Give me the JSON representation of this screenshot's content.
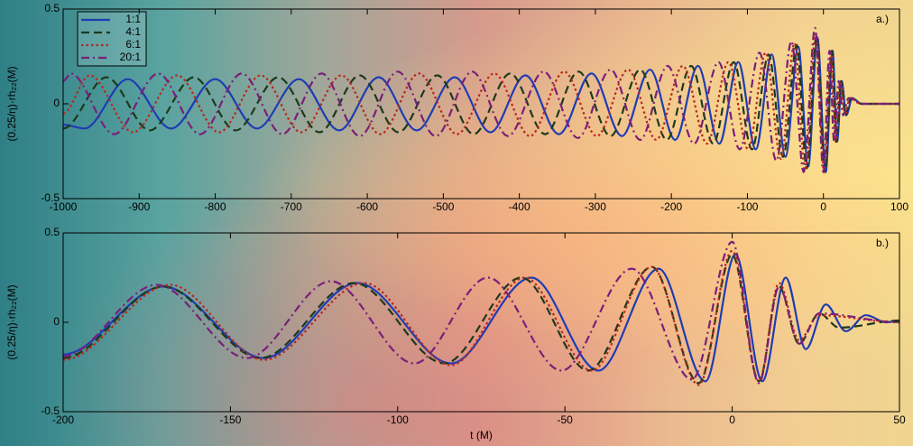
{
  "chart_data": [
    {
      "type": "line",
      "annotation": "a.)",
      "ylabel": "(0.25/η)·rh₂₂(M)",
      "xlim": [
        -1000,
        100
      ],
      "xticks": [
        -1000,
        -900,
        -800,
        -700,
        -600,
        -500,
        -400,
        -300,
        -200,
        -100,
        0,
        100
      ],
      "ylim": [
        -0.5,
        0.5
      ],
      "yticks": [
        -0.5,
        0,
        0.5
      ],
      "legend": "upper left",
      "grid": false,
      "series": [
        {
          "name": "1:1",
          "color": "#1e3cb4",
          "dash": "solid",
          "x": [
            -1000,
            -972,
            -915,
            -858,
            -800,
            -745,
            -690,
            -637,
            -585,
            -535,
            -485,
            -438,
            -392,
            -348,
            -305,
            -265,
            -228,
            -195,
            -165,
            -137,
            -112,
            -89,
            -68,
            -50,
            -33,
            -20,
            -8,
            3,
            12,
            18,
            24,
            30,
            38,
            50,
            100
          ],
          "values": [
            -0.11,
            -0.13,
            0.13,
            -0.13,
            0.13,
            -0.13,
            0.13,
            -0.14,
            0.14,
            -0.14,
            0.14,
            -0.15,
            0.15,
            -0.16,
            0.16,
            -0.17,
            0.18,
            -0.19,
            0.2,
            -0.21,
            0.22,
            -0.24,
            0.26,
            -0.28,
            0.3,
            -0.33,
            0.35,
            -0.36,
            0.28,
            -0.2,
            0.12,
            -0.06,
            0.03,
            0,
            0
          ]
        },
        {
          "name": "4:1",
          "color": "#1c3a1c",
          "dash": "dashed",
          "x": [
            -1000,
            -943,
            -886,
            -828,
            -773,
            -717,
            -663,
            -610,
            -559,
            -508,
            -460,
            -412,
            -366,
            -322,
            -280,
            -241,
            -206,
            -174,
            -145,
            -118,
            -94,
            -72,
            -53,
            -35,
            -22,
            -9,
            2,
            11,
            17,
            23,
            29,
            36,
            50,
            100
          ],
          "values": [
            -0.13,
            0.14,
            -0.14,
            0.14,
            -0.14,
            0.14,
            -0.15,
            0.15,
            -0.15,
            0.15,
            -0.16,
            0.16,
            -0.16,
            0.17,
            -0.17,
            0.18,
            -0.19,
            0.2,
            -0.21,
            0.22,
            -0.24,
            0.26,
            -0.28,
            0.31,
            -0.34,
            0.36,
            -0.36,
            0.28,
            -0.2,
            0.12,
            -0.06,
            0.03,
            0,
            0
          ]
        },
        {
          "name": "6:1",
          "color": "#b8281c",
          "dash": "dotted",
          "x": [
            -1000,
            -965,
            -908,
            -850,
            -795,
            -740,
            -687,
            -634,
            -583,
            -532,
            -482,
            -433,
            -386,
            -341,
            -298,
            -257,
            -220,
            -185,
            -153,
            -125,
            -99,
            -76,
            -56,
            -38,
            -24,
            -10,
            1,
            10,
            16,
            22,
            28,
            35,
            50,
            100
          ],
          "values": [
            -0.05,
            0.15,
            -0.15,
            0.15,
            -0.15,
            0.15,
            -0.15,
            0.15,
            -0.16,
            0.16,
            -0.16,
            0.16,
            -0.17,
            0.17,
            -0.17,
            0.18,
            -0.19,
            0.2,
            -0.21,
            0.22,
            -0.24,
            0.27,
            -0.29,
            0.32,
            -0.35,
            0.37,
            -0.36,
            0.27,
            -0.2,
            0.12,
            -0.06,
            0.03,
            0,
            0
          ]
        },
        {
          "name": "20:1",
          "color": "#7a1f7a",
          "dash": "dashdot",
          "x": [
            -1000,
            -990,
            -933,
            -875,
            -820,
            -765,
            -712,
            -660,
            -610,
            -560,
            -510,
            -462,
            -415,
            -368,
            -323,
            -280,
            -241,
            -205,
            -170,
            -138,
            -110,
            -84,
            -62,
            -42,
            -26,
            -11,
            0,
            8,
            14,
            20,
            26,
            33,
            50,
            100
          ],
          "values": [
            0.12,
            0.16,
            -0.16,
            0.16,
            -0.16,
            0.16,
            -0.16,
            0.16,
            -0.17,
            0.17,
            -0.17,
            0.17,
            -0.17,
            0.17,
            -0.18,
            0.18,
            -0.19,
            0.2,
            -0.21,
            0.22,
            -0.24,
            0.27,
            -0.3,
            0.33,
            -0.36,
            0.4,
            -0.36,
            0.28,
            -0.2,
            0.12,
            -0.06,
            0.03,
            0,
            0
          ]
        }
      ]
    },
    {
      "type": "line",
      "annotation": "b.)",
      "ylabel": "(0.25/η)·rh₂₂(M)",
      "xlabel": "t (M)",
      "xlim": [
        -200,
        50
      ],
      "xticks": [
        -200,
        -150,
        -100,
        -50,
        0,
        50
      ],
      "ylim": [
        -0.5,
        0.5
      ],
      "yticks": [
        -0.5,
        0,
        0.5
      ],
      "grid": false,
      "series": [
        {
          "color": "#1e3cb4",
          "dash": "solid",
          "x": [
            -200,
            -170,
            -140,
            -112,
            -84,
            -60,
            -40,
            -22,
            -8,
            1,
            9,
            16,
            22,
            28,
            34,
            40,
            46,
            50
          ],
          "values": [
            -0.18,
            0.2,
            -0.2,
            0.22,
            -0.23,
            0.25,
            -0.27,
            0.3,
            -0.33,
            0.38,
            -0.33,
            0.25,
            -0.15,
            0.1,
            -0.05,
            0.04,
            0,
            0.01
          ]
        },
        {
          "color": "#1c3a1c",
          "dash": "dashed",
          "x": [
            -200,
            -170,
            -141,
            -113,
            -86,
            -63,
            -43,
            -24,
            -10,
            0,
            8,
            14,
            20,
            26,
            32,
            50
          ],
          "values": [
            -0.2,
            0.2,
            -0.2,
            0.22,
            -0.23,
            0.25,
            -0.27,
            0.31,
            -0.34,
            0.38,
            -0.33,
            0.2,
            -0.12,
            0.05,
            -0.03,
            0.01
          ]
        },
        {
          "color": "#b8281c",
          "dash": "dotted",
          "x": [
            -200,
            -168,
            -140,
            -110,
            -84,
            -62,
            -42,
            -24,
            -10,
            0,
            8,
            14,
            20,
            26,
            50
          ],
          "values": [
            -0.21,
            0.21,
            -0.21,
            0.22,
            -0.24,
            0.25,
            -0.27,
            0.31,
            -0.35,
            0.4,
            -0.33,
            0.22,
            -0.1,
            0.04,
            0
          ]
        },
        {
          "color": "#7a1f7a",
          "dash": "dashdot",
          "x": [
            -200,
            -172,
            -145,
            -120,
            -95,
            -73,
            -51,
            -30,
            -12,
            0,
            8,
            14,
            20,
            26,
            50
          ],
          "values": [
            -0.19,
            0.21,
            -0.2,
            0.23,
            -0.23,
            0.25,
            -0.27,
            0.3,
            -0.32,
            0.45,
            -0.34,
            0.2,
            -0.12,
            0.05,
            0
          ]
        }
      ]
    }
  ]
}
